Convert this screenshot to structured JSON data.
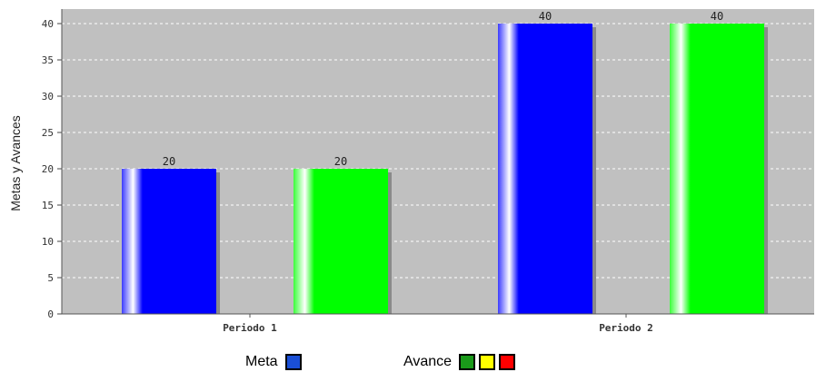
{
  "chart_data": {
    "type": "bar",
    "categories": [
      "Periodo 1",
      "Periodo 2"
    ],
    "series": [
      {
        "name": "Meta",
        "values": [
          20,
          40
        ],
        "color": "#0000ff"
      },
      {
        "name": "Avance",
        "values": [
          20,
          40
        ],
        "color": "#00ff00"
      }
    ],
    "ylabel": "Metas y Avances",
    "ylim": [
      0,
      42
    ],
    "yticks": [
      0,
      5,
      10,
      15,
      20,
      25,
      30,
      35,
      40
    ],
    "grid": true,
    "data_labels": true,
    "plot_background": "#c0c0c0",
    "legend_position": "bottom"
  },
  "legend": {
    "meta_label": "Meta",
    "meta_colors": [
      "#1a4fd6"
    ],
    "avance_label": "Avance",
    "avance_colors": [
      "#1a9a1a",
      "#ffff00",
      "#ff0000"
    ]
  }
}
